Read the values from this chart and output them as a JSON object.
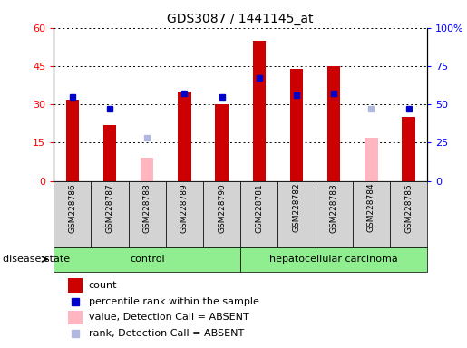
{
  "title": "GDS3087 / 1441145_at",
  "samples": [
    "GSM228786",
    "GSM228787",
    "GSM228788",
    "GSM228789",
    "GSM228790",
    "GSM228781",
    "GSM228782",
    "GSM228783",
    "GSM228784",
    "GSM228785"
  ],
  "count_values": [
    32,
    22,
    null,
    35,
    30,
    55,
    44,
    45,
    null,
    25
  ],
  "percentile_values": [
    55,
    47,
    null,
    57,
    55,
    67,
    56,
    57,
    null,
    47
  ],
  "absent_value_bar": [
    null,
    null,
    9,
    null,
    null,
    null,
    null,
    null,
    17,
    null
  ],
  "absent_rank_pct": [
    null,
    null,
    28,
    null,
    null,
    null,
    null,
    null,
    47,
    null
  ],
  "group_bounds": [
    [
      0,
      4,
      "control",
      "#90EE90"
    ],
    [
      5,
      9,
      "hepatocellular carcinoma",
      "#90EE90"
    ]
  ],
  "ylim_left": [
    0,
    60
  ],
  "ylim_right": [
    0,
    100
  ],
  "yticks_left": [
    0,
    15,
    30,
    45,
    60
  ],
  "ytick_labels_left": [
    "0",
    "15",
    "30",
    "45",
    "60"
  ],
  "yticks_right": [
    0,
    25,
    50,
    75,
    100
  ],
  "ytick_labels_right": [
    "0",
    "25",
    "50",
    "75",
    "100%"
  ],
  "bar_color": "#CC0000",
  "percentile_color": "#0000CC",
  "absent_bar_color": "#FFB6C1",
  "absent_rank_color": "#B0B8E0",
  "sample_bg_color": "#D3D3D3",
  "plot_bg_color": "#FFFFFF"
}
